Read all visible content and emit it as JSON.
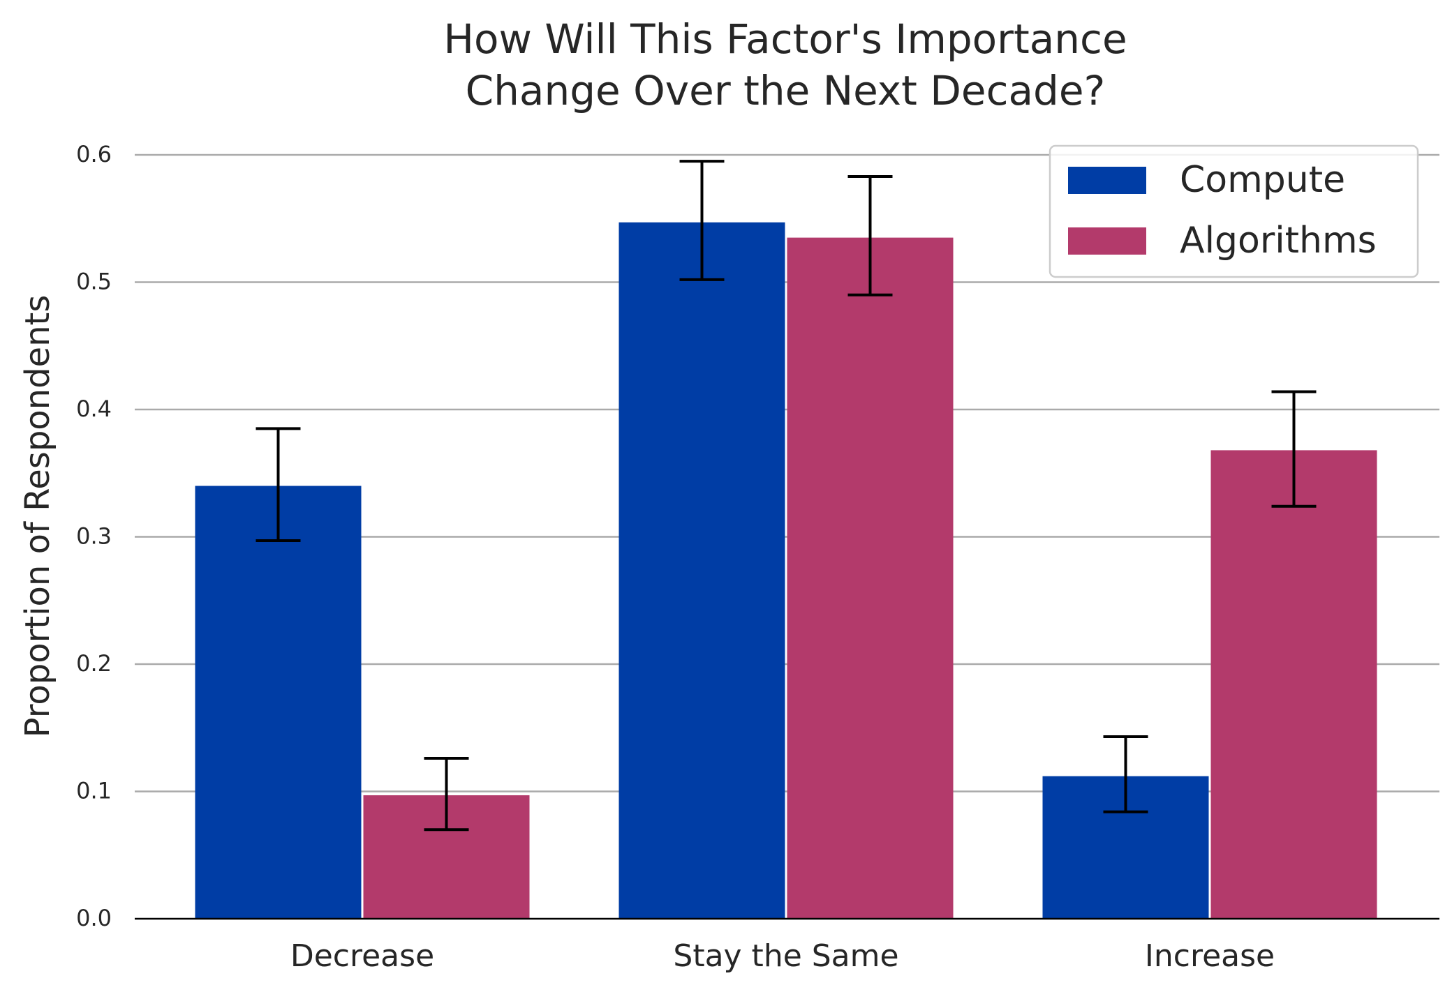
{
  "chart_data": {
    "type": "bar",
    "title": "How Will This Factor's Importance\nChange Over the Next Decade?",
    "title_lines": [
      "How Will This Factor's Importance",
      "Change Over the Next Decade?"
    ],
    "xlabel": "",
    "ylabel": "Proportion of Respondents",
    "categories": [
      "Decrease",
      "Stay the Same",
      "Increase"
    ],
    "ylim": [
      0,
      0.6
    ],
    "yticks": [
      0.0,
      0.1,
      0.2,
      0.3,
      0.4,
      0.5,
      0.6
    ],
    "ytick_labels": [
      "0.0",
      "0.1",
      "0.2",
      "0.3",
      "0.4",
      "0.5",
      "0.6"
    ],
    "grid": "horizontal",
    "legend_position": "top-right",
    "series": [
      {
        "name": "Compute",
        "color": "#003DA5",
        "values": [
          0.34,
          0.547,
          0.112
        ],
        "error_low": [
          0.297,
          0.502,
          0.084
        ],
        "error_high": [
          0.385,
          0.595,
          0.143
        ]
      },
      {
        "name": "Algorithms",
        "color": "#B33A6B",
        "values": [
          0.097,
          0.535,
          0.368
        ],
        "error_low": [
          0.07,
          0.49,
          0.324
        ],
        "error_high": [
          0.126,
          0.583,
          0.414
        ]
      }
    ]
  }
}
